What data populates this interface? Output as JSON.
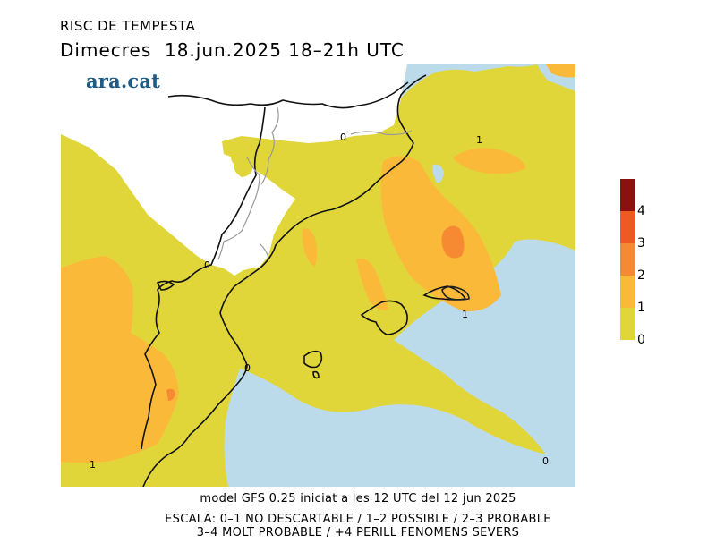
{
  "header": {
    "title": "RISC DE TEMPESTA",
    "subtitle": "Dimecres  18.jun.2025 18–21h UTC"
  },
  "logo": "ara.cat",
  "map": {
    "contour_labels": [
      "0",
      "1",
      "1",
      "0",
      "0",
      "1",
      "0"
    ],
    "colors": {
      "sea": "#bcdbea",
      "land_outside": "#ffffff",
      "level_0_1": "#e0d63a",
      "level_1_2": "#fbb93a",
      "level_2_3": "#f58a32",
      "level_3_4": "#ee5a22",
      "level_4_plus": "#8b1010"
    }
  },
  "legend": {
    "ticks": [
      "0",
      "1",
      "2",
      "3",
      "4"
    ],
    "colors": [
      "#e0d63a",
      "#fbb93a",
      "#f58a32",
      "#ee5a22",
      "#8b1010"
    ]
  },
  "footer": {
    "model": "model GFS 0.25 iniciat a les 12 UTC del 12 jun 2025",
    "scale_line1": "ESCALA: 0–1 NO DESCARTABLE / 1–2 POSSIBLE / 2–3 PROBABLE",
    "scale_line2": "3–4 MOLT PROBABLE / +4 PERILL FENOMENS SEVERS"
  }
}
